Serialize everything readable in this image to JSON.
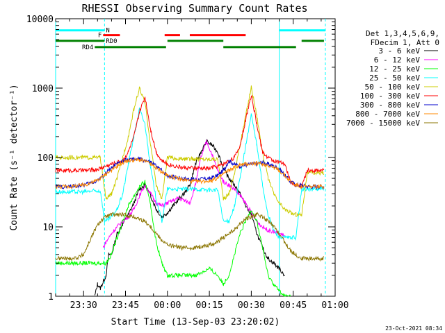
{
  "chart_data": {
    "type": "line",
    "title": "RHESSI Observing Summary Count Rates",
    "xlabel": "Start Time (13-Sep-03 23:20:02)",
    "ylabel": "Count Rate (s⁻¹ detector⁻¹)",
    "x_unit": "minutes after 23:20",
    "xlim": [
      0,
      100
    ],
    "ylim": [
      1,
      10000
    ],
    "y_scale": "log",
    "x_ticks": [
      {
        "value": 10,
        "label": "23:30"
      },
      {
        "value": 25,
        "label": "23:45"
      },
      {
        "value": 40,
        "label": "00:00"
      },
      {
        "value": 55,
        "label": "00:15"
      },
      {
        "value": 70,
        "label": "00:30"
      },
      {
        "value": 85,
        "label": "00:45"
      },
      {
        "value": 100,
        "label": "01:00"
      }
    ],
    "y_ticks": [
      {
        "value": 1,
        "label": "1"
      },
      {
        "value": 10,
        "label": "10"
      },
      {
        "value": 100,
        "label": "100"
      },
      {
        "value": 1000,
        "label": "1000"
      },
      {
        "value": 10000,
        "label": "10000"
      }
    ],
    "legend": {
      "placement": "right",
      "header": [
        "Det 1,3,4,5,6,9,",
        "FDecim 1, Att 0"
      ]
    },
    "timestamp": "23-Oct-2021 08:34",
    "vertical_lines": [
      {
        "x": 0,
        "style": "solid",
        "color": "#00ffff"
      },
      {
        "x": 17.5,
        "style": "dashed",
        "color": "#00ffff"
      },
      {
        "x": 80,
        "style": "solid",
        "color": "#00ffff"
      },
      {
        "x": 96.5,
        "style": "dashed",
        "color": "#00ffff"
      }
    ],
    "flag_bars": [
      {
        "label": "N",
        "color": "#00ffff",
        "y_level": 6800,
        "segments": [
          [
            0,
            17.5
          ],
          [
            80,
            96.5
          ]
        ]
      },
      {
        "label": "F",
        "color": "#ff0000",
        "y_level": 5800,
        "segments": [
          [
            17,
            23
          ],
          [
            39,
            44.5
          ],
          [
            48,
            68
          ]
        ]
      },
      {
        "label": "RD0",
        "color": "#008000",
        "y_level": 4800,
        "segments": [
          [
            0,
            17.5
          ],
          [
            40,
            60
          ],
          [
            88,
            96
          ]
        ]
      },
      {
        "label": "RD4",
        "color": "#008000",
        "y_level": 3900,
        "segments": [
          [
            14,
            39.5
          ],
          [
            60,
            86
          ]
        ]
      }
    ],
    "series": [
      {
        "name": "3 - 6 keV",
        "color": "#000000",
        "x": [
          14,
          15,
          16,
          17,
          18,
          19,
          20,
          22,
          24,
          26,
          28,
          30,
          32,
          34,
          36,
          38,
          40,
          42,
          44,
          46,
          48,
          50,
          52,
          54,
          56,
          58,
          60,
          62,
          64,
          66,
          68,
          70,
          72,
          74,
          76,
          78,
          80,
          82
        ],
        "y": [
          1,
          1.5,
          1.3,
          1.6,
          2,
          4,
          4,
          8,
          11,
          15,
          22,
          35,
          40,
          28,
          18,
          14,
          16,
          20,
          25,
          30,
          40,
          80,
          120,
          170,
          150,
          120,
          70,
          50,
          40,
          30,
          20,
          15,
          8,
          5,
          3.5,
          3,
          2.5,
          2
        ]
      },
      {
        "name": "6 - 12 keV",
        "color": "#ff00ff",
        "x": [
          17,
          18,
          20,
          22,
          24,
          26,
          28,
          30,
          32,
          34,
          36,
          38,
          40,
          42,
          44,
          46,
          48,
          50,
          52,
          54,
          56,
          58,
          60,
          62,
          64,
          66,
          68,
          70,
          72,
          74,
          76,
          78,
          80,
          82
        ],
        "y": [
          5,
          6,
          8,
          10,
          12,
          14,
          18,
          28,
          40,
          30,
          22,
          20,
          22,
          24,
          26,
          24,
          22,
          40,
          100,
          170,
          110,
          65,
          45,
          40,
          35,
          28,
          22,
          16,
          12,
          10,
          9,
          8.5,
          8,
          7.5
        ]
      },
      {
        "name": "12 - 25 keV",
        "color": "#00ff00",
        "x": [
          0,
          5,
          10,
          12,
          14,
          16,
          18,
          20,
          22,
          24,
          26,
          28,
          30,
          32,
          34,
          36,
          38,
          40,
          45,
          50,
          55,
          58,
          60,
          62,
          64,
          66,
          68,
          70,
          72,
          74,
          76,
          78,
          80,
          82,
          84
        ],
        "y": [
          3,
          3,
          3,
          3,
          3,
          3,
          3,
          4,
          7,
          12,
          20,
          28,
          38,
          45,
          20,
          6,
          3,
          2,
          2,
          2,
          2.5,
          2,
          1.5,
          2,
          4,
          8,
          12,
          18,
          12,
          5,
          2,
          1.5,
          1.2,
          1,
          1
        ]
      },
      {
        "name": "25 - 50 keV",
        "color": "#00ffff",
        "x": [
          0,
          5,
          10,
          14,
          16,
          17.5,
          18,
          20,
          22,
          24,
          26,
          28,
          30,
          32,
          34,
          36,
          38,
          40,
          45,
          50,
          55,
          58,
          60,
          62,
          64,
          66,
          68,
          70,
          72,
          74,
          76,
          78,
          80,
          82,
          84,
          86,
          88,
          90,
          94,
          96
        ],
        "y": [
          32,
          32,
          32,
          33,
          33,
          12,
          12,
          14,
          18,
          30,
          80,
          200,
          500,
          300,
          70,
          25,
          12,
          35,
          35,
          35,
          34,
          34,
          12,
          12,
          20,
          50,
          150,
          420,
          150,
          40,
          15,
          9,
          7,
          7,
          7,
          7,
          35,
          35,
          35,
          36
        ]
      },
      {
        "name": "50 - 100 keV",
        "color": "#cccc00",
        "x": [
          0,
          5,
          10,
          14,
          16,
          18,
          20,
          22,
          24,
          26,
          28,
          30,
          32,
          34,
          36,
          38,
          40,
          45,
          50,
          55,
          58,
          60,
          62,
          64,
          66,
          68,
          70,
          72,
          74,
          76,
          78,
          80,
          82,
          84,
          86,
          88,
          90,
          94,
          96
        ],
        "y": [
          100,
          100,
          100,
          100,
          100,
          25,
          30,
          50,
          100,
          200,
          500,
          1000,
          600,
          150,
          40,
          25,
          100,
          95,
          95,
          95,
          95,
          25,
          30,
          60,
          150,
          400,
          1050,
          400,
          120,
          50,
          30,
          22,
          18,
          16,
          15,
          15,
          60,
          60,
          60
        ]
      },
      {
        "name": "100 - 300 keV",
        "color": "#ff0000",
        "x": [
          0,
          5,
          10,
          14,
          16,
          18,
          20,
          22,
          24,
          26,
          28,
          30,
          32,
          34,
          36,
          38,
          40,
          45,
          50,
          55,
          58,
          60,
          62,
          64,
          66,
          68,
          70,
          72,
          74,
          76,
          78,
          80,
          82,
          84,
          86,
          88,
          90,
          94,
          96
        ],
        "y": [
          65,
          65,
          65,
          66,
          70,
          75,
          80,
          85,
          90,
          120,
          200,
          450,
          750,
          250,
          120,
          90,
          80,
          72,
          70,
          70,
          75,
          80,
          90,
          100,
          150,
          350,
          800,
          300,
          120,
          100,
          90,
          85,
          80,
          45,
          40,
          38,
          65,
          65,
          65
        ]
      },
      {
        "name": "300 - 800 keV",
        "color": "#0000cc",
        "x": [
          0,
          5,
          10,
          14,
          16,
          18,
          20,
          22,
          24,
          26,
          28,
          30,
          32,
          34,
          36,
          38,
          40,
          45,
          50,
          55,
          58,
          60,
          62,
          64,
          66,
          68,
          70,
          72,
          74,
          76,
          78,
          80,
          82,
          84,
          86,
          88,
          90,
          94,
          96
        ],
        "y": [
          38,
          38,
          40,
          45,
          50,
          60,
          70,
          80,
          90,
          92,
          95,
          95,
          90,
          85,
          75,
          65,
          55,
          50,
          48,
          50,
          55,
          65,
          90,
          80,
          75,
          78,
          80,
          82,
          85,
          80,
          75,
          70,
          55,
          45,
          40,
          40,
          38,
          38,
          38
        ]
      },
      {
        "name": "800 - 7000 keV",
        "color": "#ff8800",
        "x": [
          0,
          5,
          10,
          14,
          16,
          18,
          20,
          22,
          24,
          26,
          28,
          30,
          32,
          34,
          36,
          38,
          40,
          45,
          50,
          55,
          58,
          60,
          62,
          64,
          66,
          68,
          70,
          72,
          74,
          76,
          78,
          80,
          82,
          84,
          86,
          88,
          90,
          94,
          96
        ],
        "y": [
          38,
          38,
          40,
          45,
          50,
          58,
          65,
          75,
          85,
          90,
          92,
          92,
          88,
          80,
          70,
          62,
          55,
          48,
          45,
          46,
          50,
          58,
          65,
          72,
          78,
          80,
          82,
          82,
          80,
          78,
          72,
          65,
          55,
          45,
          40,
          38,
          38,
          38,
          38
        ]
      },
      {
        "name": "7000 - 15000 keV",
        "color": "#8b7500",
        "x": [
          0,
          5,
          8,
          10,
          12,
          14,
          16,
          18,
          20,
          22,
          24,
          26,
          28,
          30,
          32,
          34,
          36,
          38,
          40,
          45,
          50,
          55,
          58,
          60,
          62,
          64,
          66,
          68,
          70,
          72,
          74,
          76,
          78,
          80,
          82,
          84,
          86,
          88,
          90,
          94,
          96
        ],
        "y": [
          3.5,
          3.5,
          3.6,
          4,
          6,
          9,
          12,
          14,
          15,
          15,
          15,
          14.5,
          14,
          13,
          12,
          10,
          8,
          6.5,
          5.5,
          5,
          5,
          5.5,
          6,
          7,
          8,
          9,
          11,
          13,
          14,
          15,
          14,
          12,
          10,
          8,
          6,
          4.5,
          4,
          3.5,
          3.5,
          3.5,
          3.5
        ]
      }
    ]
  }
}
